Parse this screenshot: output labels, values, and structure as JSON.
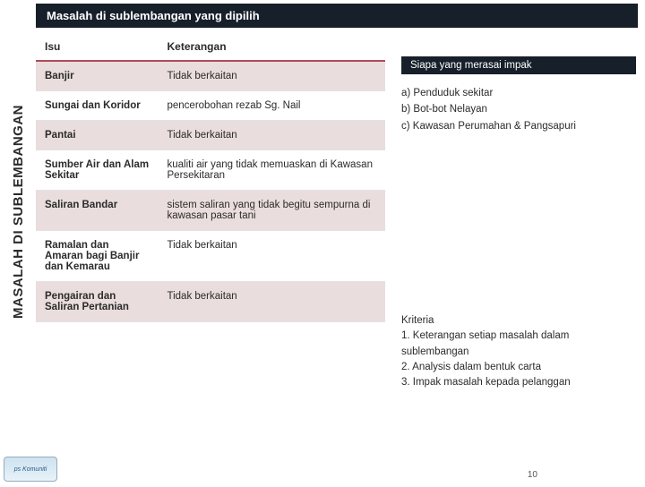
{
  "title": "Masalah di sublembangan yang dipilih",
  "verticalLabel": "MASALAH DI SUBLEMBANGAN",
  "headers": {
    "isu": "Isu",
    "keterangan": "Keterangan"
  },
  "rows": [
    {
      "isu": "Banjir",
      "ket": "Tidak berkaitan",
      "alt": true
    },
    {
      "isu": "Sungai dan Koridor",
      "ket": "pencerobohan rezab Sg. Nail",
      "alt": false
    },
    {
      "isu": "Pantai",
      "ket": "Tidak berkaitan",
      "alt": true
    },
    {
      "isu": "Sumber Air dan Alam Sekitar",
      "ket": "kualiti air yang tidak memuaskan di Kawasan Persekitaran",
      "alt": false
    },
    {
      "isu": "Saliran Bandar",
      "ket": "sistem saliran yang tidak begitu sempurna di kawasan pasar tani",
      "alt": true
    },
    {
      "isu": "Ramalan dan Amaran bagi Banjir dan Kemarau",
      "ket": "Tidak berkaitan",
      "alt": false
    },
    {
      "isu": "Pengairan dan Saliran Pertanian",
      "ket": "Tidak berkaitan",
      "alt": true
    }
  ],
  "impact": {
    "header": "Siapa yang merasai impak",
    "items": [
      "a) Penduduk sekitar",
      "b) Bot-bot Nelayan",
      "c) Kawasan Perumahan  & Pangsapuri"
    ]
  },
  "kriteria": {
    "title": "Kriteria",
    "items": [
      "1.  Keterangan setiap masalah dalam sublembangan",
      "2.  Analysis dalam bentuk carta",
      "3.  Impak masalah kepada pelanggan"
    ]
  },
  "logoText": "ps Komuniti",
  "pageNumber": "10",
  "colors": {
    "titleBg": "#17202a",
    "headerBorder": "#b04a5a",
    "altRow": "#eadddd"
  }
}
